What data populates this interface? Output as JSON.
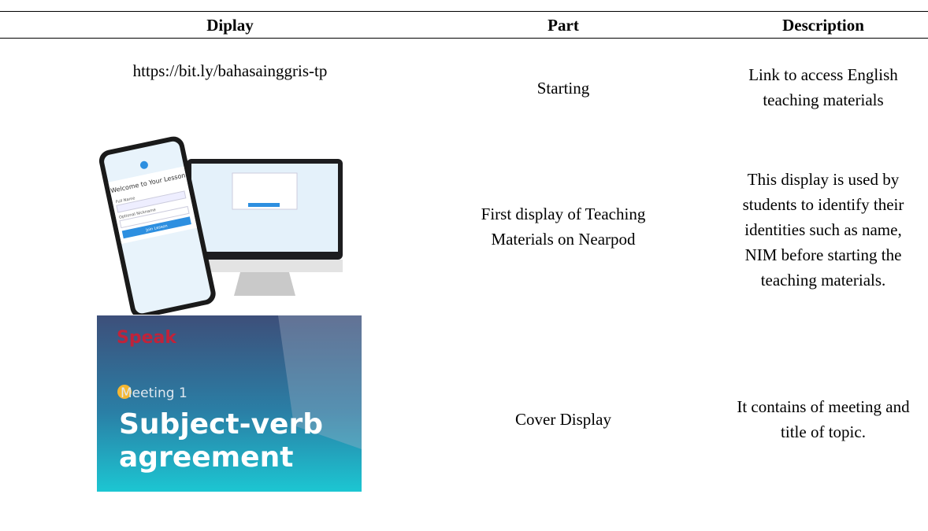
{
  "table": {
    "header": [
      "Diplay",
      "Part",
      "Description"
    ],
    "rows": [
      {
        "display": "https://bit.ly/bahasainggris-tp",
        "part": [
          "Starting"
        ],
        "description": [
          "Link to access English",
          "teaching materials"
        ]
      },
      {
        "display": {
          "title": "Welcome to Your Lesson",
          "fields": [
            "Full Name",
            "Optional Nickname"
          ],
          "button": "Join Lesson"
        },
        "part": [
          "First display of Teaching",
          "Materials on Nearpod"
        ],
        "description": [
          "This display is used by",
          "students to identify their",
          "identities such as name,",
          "NIM before starting the",
          "teaching materials."
        ]
      },
      {
        "display": {
          "logo": "Speak",
          "meeting": "Meeting 1",
          "title": [
            "Subject-verb",
            "agreement"
          ]
        },
        "part": [
          "Cover Display"
        ],
        "description": [
          "It contains of meeting and",
          "title of topic."
        ]
      }
    ]
  }
}
